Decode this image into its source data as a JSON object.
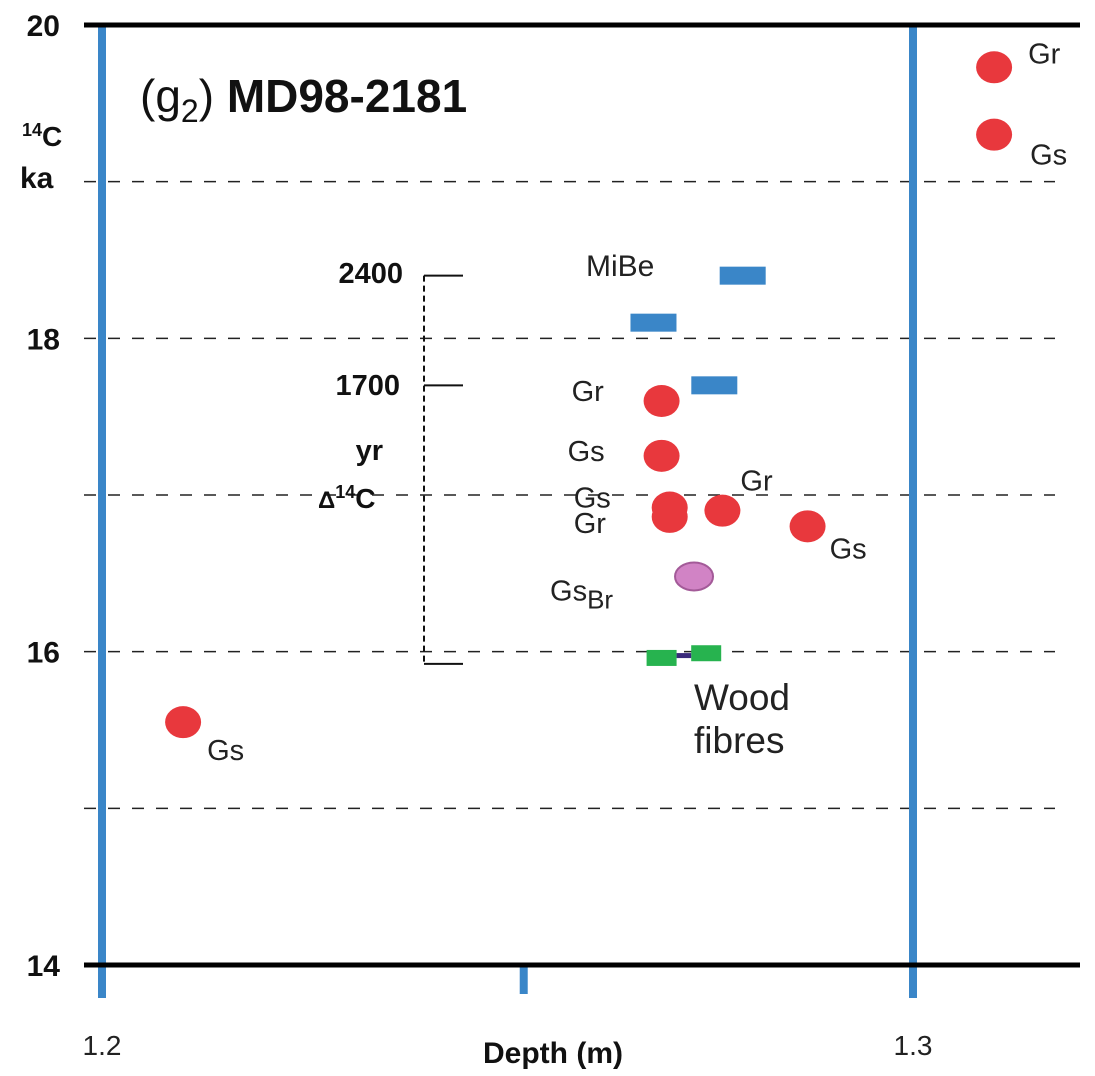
{
  "chart_data": {
    "type": "scatter",
    "title": "(g",
    "title_sub": "2",
    "title_rest": ") ",
    "title_bold": "MD98-2181",
    "ylabel_line1_sup": "14",
    "ylabel_line1": "C",
    "ylabel_line2": "ka",
    "xlabel": "Depth (m)",
    "xlim": [
      1.2,
      1.335
    ],
    "ylim": [
      14,
      20
    ],
    "y_ticks": [
      {
        "value": 14,
        "label": "14"
      },
      {
        "value": 16,
        "label": "16"
      },
      {
        "value": 18,
        "label": "18"
      },
      {
        "value": 20,
        "label": "20"
      }
    ],
    "x_ticks": [
      {
        "value": 1.2,
        "label": "1.2"
      },
      {
        "value": 1.3,
        "label": "1.3"
      }
    ],
    "dashed_gridlines_y": [
      15,
      16,
      17,
      18,
      19
    ],
    "vertical_bars_x": [
      1.2,
      1.3
    ],
    "depth_marker_x": 1.252,
    "colors": {
      "red": "#e8383d",
      "blue": "#3a86c8",
      "green": "#27b34f",
      "purple": "#d183c5",
      "axis_blue": "#3a86c8"
    },
    "scale_bar": {
      "label_top": "2400",
      "value_top": 2400,
      "label_mid": "1700",
      "value_mid": 1700,
      "unit_line1": "yr",
      "unit_line2_prefix": "Δ",
      "unit_line2_sup": "14",
      "unit_line2": "C",
      "y_top": 18.4,
      "y_mid": 17.7,
      "y_bottom": 15.96
    },
    "series": [
      {
        "symbol": "circle",
        "color": "red",
        "points": [
          {
            "x": 1.21,
            "y": 15.55,
            "label": "Gs"
          },
          {
            "x": 1.269,
            "y": 17.6,
            "label": "Gr"
          },
          {
            "x": 1.269,
            "y": 17.25,
            "label": "Gs"
          },
          {
            "x": 1.27,
            "y": 16.92,
            "label": "Gs"
          },
          {
            "x": 1.27,
            "y": 16.86,
            "label": "Gr"
          },
          {
            "x": 1.2765,
            "y": 16.9,
            "label": "Gr"
          },
          {
            "x": 1.287,
            "y": 16.8,
            "label": "Gs"
          },
          {
            "x": 1.31,
            "y": 19.73,
            "label": "Gr"
          },
          {
            "x": 1.31,
            "y": 19.3,
            "label": "Gs"
          }
        ]
      },
      {
        "symbol": "rect",
        "color": "blue",
        "label": "MiBe",
        "points": [
          {
            "x": 1.279,
            "y": 18.4
          },
          {
            "x": 1.268,
            "y": 18.1
          },
          {
            "x": 1.2755,
            "y": 17.7
          }
        ]
      },
      {
        "symbol": "circle",
        "color": "purple",
        "points": [
          {
            "x": 1.273,
            "y": 16.48,
            "label": "Gs",
            "label_sub": "Br"
          }
        ]
      },
      {
        "symbol": "rect",
        "color": "green",
        "label": "Wood fibres",
        "label_line1": "Wood",
        "label_line2": "fibres",
        "points": [
          {
            "x": 1.269,
            "y": 15.96
          },
          {
            "x": 1.2745,
            "y": 15.99
          }
        ]
      }
    ]
  }
}
